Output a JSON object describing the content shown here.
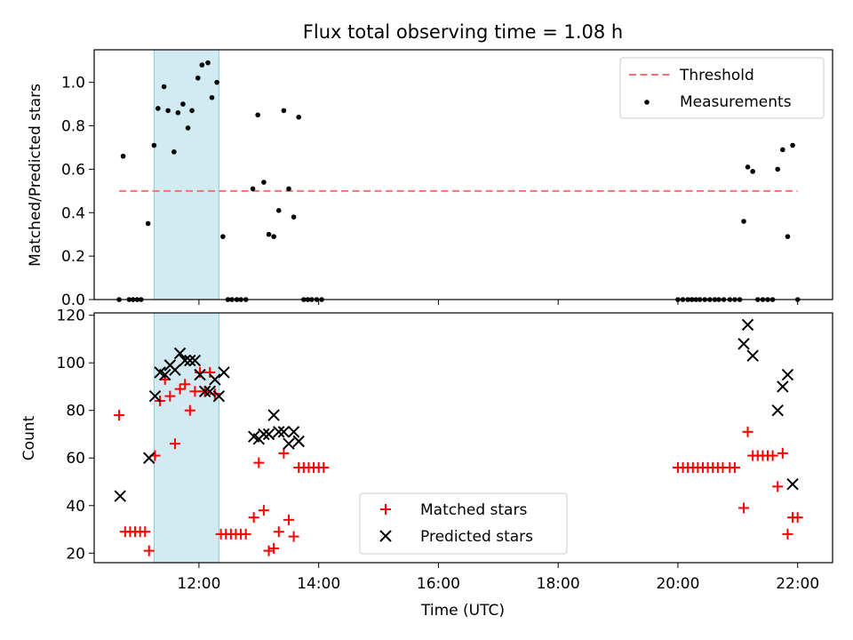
{
  "title": "Flux total observing time = 1.08 h",
  "chart_data": [
    {
      "type": "scatter",
      "panel": "top",
      "ylabel": "Matched/Predicted stars",
      "xlabel": "",
      "xlim": [
        "10:15",
        "22:35"
      ],
      "ylim": [
        0,
        1.15
      ],
      "yticks": [
        0.0,
        0.2,
        0.4,
        0.6,
        0.8,
        1.0
      ],
      "legend": "top-right",
      "grid": false,
      "highlight_band": {
        "start": "11:15",
        "end": "12:20",
        "color": "#add8e6"
      },
      "threshold": {
        "name": "Threshold",
        "value": 0.5,
        "start": "10:40",
        "end": "22:00",
        "color": "#ff7070"
      },
      "series": [
        {
          "name": "Measurements",
          "color": "#000000",
          "points": [
            [
              "10:40",
              0.0
            ],
            [
              "10:44",
              0.66
            ],
            [
              "10:50",
              0.0
            ],
            [
              "10:54",
              0.0
            ],
            [
              "10:58",
              0.0
            ],
            [
              "11:02",
              0.0
            ],
            [
              "11:09",
              0.35
            ],
            [
              "11:15",
              0.71
            ],
            [
              "11:19",
              0.88
            ],
            [
              "11:25",
              0.98
            ],
            [
              "11:29",
              0.87
            ],
            [
              "11:35",
              0.68
            ],
            [
              "11:39",
              0.86
            ],
            [
              "11:44",
              0.9
            ],
            [
              "11:49",
              0.79
            ],
            [
              "11:53",
              0.87
            ],
            [
              "11:59",
              1.02
            ],
            [
              "12:03",
              1.08
            ],
            [
              "12:09",
              1.09
            ],
            [
              "12:13",
              0.93
            ],
            [
              "12:18",
              1.0
            ],
            [
              "12:24",
              0.29
            ],
            [
              "12:29",
              0.0
            ],
            [
              "12:33",
              0.0
            ],
            [
              "12:38",
              0.0
            ],
            [
              "12:42",
              0.0
            ],
            [
              "12:47",
              0.0
            ],
            [
              "12:54",
              0.51
            ],
            [
              "12:59",
              0.85
            ],
            [
              "13:05",
              0.54
            ],
            [
              "13:10",
              0.3
            ],
            [
              "13:15",
              0.29
            ],
            [
              "13:20",
              0.41
            ],
            [
              "13:25",
              0.87
            ],
            [
              "13:30",
              0.51
            ],
            [
              "13:35",
              0.38
            ],
            [
              "13:40",
              0.84
            ],
            [
              "13:45",
              0.0
            ],
            [
              "13:49",
              0.0
            ],
            [
              "13:53",
              0.0
            ],
            [
              "13:58",
              0.0
            ],
            [
              "14:03",
              0.0
            ],
            [
              "20:00",
              0.0
            ],
            [
              "20:05",
              0.0
            ],
            [
              "20:10",
              0.0
            ],
            [
              "20:14",
              0.0
            ],
            [
              "20:18",
              0.0
            ],
            [
              "20:22",
              0.0
            ],
            [
              "20:27",
              0.0
            ],
            [
              "20:32",
              0.0
            ],
            [
              "20:37",
              0.0
            ],
            [
              "20:41",
              0.0
            ],
            [
              "20:46",
              0.0
            ],
            [
              "20:52",
              0.0
            ],
            [
              "20:57",
              0.0
            ],
            [
              "21:02",
              0.0
            ],
            [
              "21:06",
              0.36
            ],
            [
              "21:10",
              0.61
            ],
            [
              "21:15",
              0.59
            ],
            [
              "21:20",
              0.0
            ],
            [
              "21:25",
              0.0
            ],
            [
              "21:30",
              0.0
            ],
            [
              "21:35",
              0.0
            ],
            [
              "21:40",
              0.6
            ],
            [
              "21:45",
              0.69
            ],
            [
              "21:50",
              0.29
            ],
            [
              "21:55",
              0.71
            ],
            [
              "22:00",
              0.0
            ]
          ]
        }
      ]
    },
    {
      "type": "scatter",
      "panel": "bottom",
      "xlabel": "Time (UTC)",
      "ylabel": "Count",
      "xlim": [
        "10:15",
        "22:35"
      ],
      "ylim": [
        16,
        121
      ],
      "yticks": [
        20,
        40,
        60,
        80,
        100,
        120
      ],
      "xticks": [
        "12:00",
        "14:00",
        "16:00",
        "18:00",
        "20:00",
        "22:00"
      ],
      "legend": "bottom-center",
      "grid": false,
      "highlight_band": {
        "start": "11:15",
        "end": "12:20",
        "color": "#add8e6"
      },
      "series": [
        {
          "name": "Matched stars",
          "marker": "plus",
          "color": "#ff0000",
          "points": [
            [
              "10:40",
              78
            ],
            [
              "10:46",
              29
            ],
            [
              "10:51",
              29
            ],
            [
              "10:56",
              29
            ],
            [
              "11:01",
              29
            ],
            [
              "11:06",
              29
            ],
            [
              "11:10",
              21
            ],
            [
              "11:16",
              61
            ],
            [
              "11:21",
              84
            ],
            [
              "11:26",
              93
            ],
            [
              "11:31",
              86
            ],
            [
              "11:36",
              66
            ],
            [
              "11:41",
              89
            ],
            [
              "11:46",
              91
            ],
            [
              "11:51",
              80
            ],
            [
              "11:56",
              88
            ],
            [
              "12:01",
              96
            ],
            [
              "12:06",
              88
            ],
            [
              "12:11",
              96
            ],
            [
              "12:16",
              87
            ],
            [
              "12:22",
              28
            ],
            [
              "12:27",
              28
            ],
            [
              "12:32",
              28
            ],
            [
              "12:37",
              28
            ],
            [
              "12:42",
              28
            ],
            [
              "12:47",
              28
            ],
            [
              "12:55",
              35
            ],
            [
              "13:00",
              58
            ],
            [
              "13:05",
              38
            ],
            [
              "13:10",
              21
            ],
            [
              "13:15",
              22
            ],
            [
              "13:20",
              29
            ],
            [
              "13:25",
              62
            ],
            [
              "13:30",
              34
            ],
            [
              "13:35",
              27
            ],
            [
              "13:40",
              56
            ],
            [
              "13:45",
              56
            ],
            [
              "13:50",
              56
            ],
            [
              "13:55",
              56
            ],
            [
              "14:00",
              56
            ],
            [
              "14:05",
              56
            ],
            [
              "20:00",
              56
            ],
            [
              "20:05",
              56
            ],
            [
              "20:10",
              56
            ],
            [
              "20:15",
              56
            ],
            [
              "20:20",
              56
            ],
            [
              "20:25",
              56
            ],
            [
              "20:30",
              56
            ],
            [
              "20:35",
              56
            ],
            [
              "20:40",
              56
            ],
            [
              "20:45",
              56
            ],
            [
              "20:52",
              56
            ],
            [
              "20:57",
              56
            ],
            [
              "21:06",
              39
            ],
            [
              "21:10",
              71
            ],
            [
              "21:15",
              61
            ],
            [
              "21:20",
              61
            ],
            [
              "21:25",
              61
            ],
            [
              "21:30",
              61
            ],
            [
              "21:35",
              61
            ],
            [
              "21:40",
              48
            ],
            [
              "21:45",
              62
            ],
            [
              "21:50",
              28
            ],
            [
              "21:55",
              35
            ],
            [
              "22:00",
              35
            ]
          ]
        },
        {
          "name": "Predicted stars",
          "marker": "x",
          "color": "#000000",
          "points": [
            [
              "10:41",
              44
            ],
            [
              "11:10",
              60
            ],
            [
              "11:16",
              86
            ],
            [
              "11:21",
              96
            ],
            [
              "11:26",
              95
            ],
            [
              "11:31",
              99
            ],
            [
              "11:36",
              97
            ],
            [
              "11:41",
              104
            ],
            [
              "11:46",
              101
            ],
            [
              "11:51",
              101
            ],
            [
              "11:56",
              101
            ],
            [
              "12:01",
              95
            ],
            [
              "12:06",
              88
            ],
            [
              "12:11",
              88
            ],
            [
              "12:16",
              93
            ],
            [
              "12:20",
              86
            ],
            [
              "12:25",
              96
            ],
            [
              "12:55",
              69
            ],
            [
              "13:00",
              68
            ],
            [
              "13:05",
              70
            ],
            [
              "13:10",
              70
            ],
            [
              "13:15",
              78
            ],
            [
              "13:20",
              71
            ],
            [
              "13:25",
              71
            ],
            [
              "13:30",
              66
            ],
            [
              "13:35",
              71
            ],
            [
              "13:40",
              67
            ],
            [
              "21:06",
              108
            ],
            [
              "21:10",
              116
            ],
            [
              "21:15",
              103
            ],
            [
              "21:40",
              80
            ],
            [
              "21:45",
              90
            ],
            [
              "21:50",
              95
            ],
            [
              "21:55",
              49
            ]
          ]
        }
      ]
    }
  ]
}
